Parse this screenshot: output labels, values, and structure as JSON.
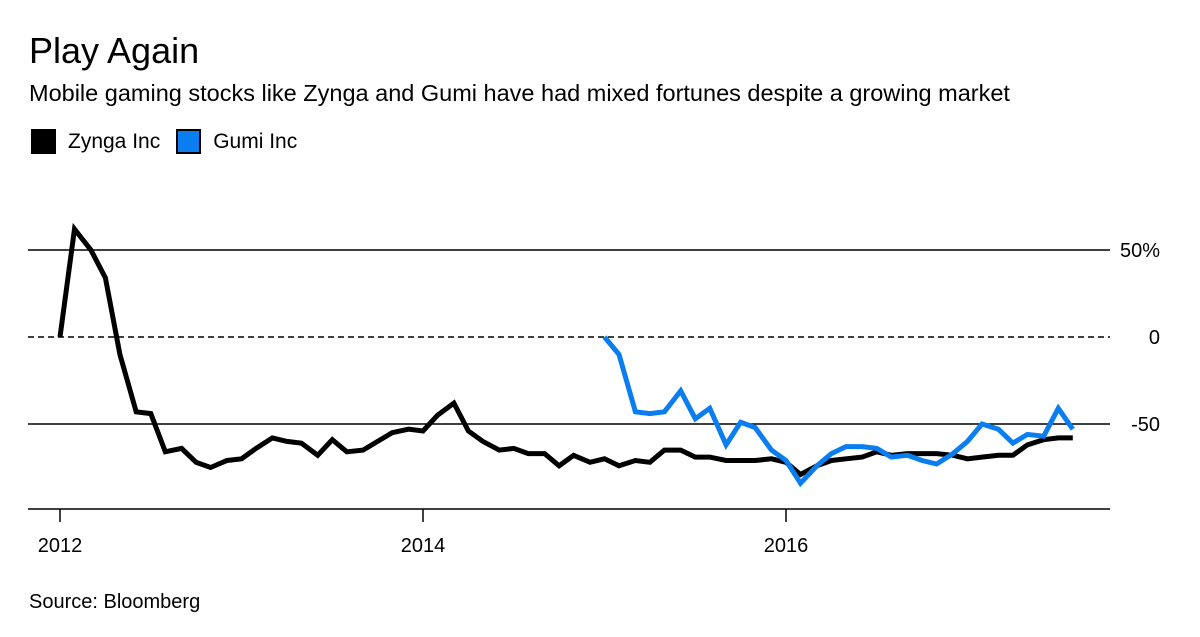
{
  "header": {
    "title": "Play Again",
    "subtitle": "Mobile gaming stocks like Zynga and Gumi have had mixed fortunes despite a growing market"
  },
  "legend": [
    {
      "label": "Zynga Inc",
      "color": "#000000"
    },
    {
      "label": "Gumi Inc",
      "color": "#0a7ef0"
    }
  ],
  "footer": {
    "source": "Source: Bloomberg"
  },
  "chart_data": {
    "type": "line",
    "title": "Play Again",
    "xlabel": "",
    "ylabel": "",
    "ylim": [
      -100,
      60
    ],
    "xlim": [
      2012,
      2017.7
    ],
    "y_ticks": [
      {
        "value": 50,
        "label": "50%",
        "style": "solid"
      },
      {
        "value": 0,
        "label": "0",
        "style": "dashed"
      },
      {
        "value": -50,
        "label": "-50",
        "style": "solid"
      }
    ],
    "x_ticks": [
      {
        "value": 2012,
        "label": "2012"
      },
      {
        "value": 2014,
        "label": "2014"
      },
      {
        "value": 2016,
        "label": "2016"
      }
    ],
    "series": [
      {
        "name": "Zynga Inc",
        "color": "#000000",
        "points": [
          [
            2012.0,
            0
          ],
          [
            2012.08,
            62
          ],
          [
            2012.17,
            50
          ],
          [
            2012.25,
            34
          ],
          [
            2012.33,
            -10
          ],
          [
            2012.42,
            -43
          ],
          [
            2012.5,
            -44
          ],
          [
            2012.58,
            -66
          ],
          [
            2012.67,
            -64
          ],
          [
            2012.75,
            -72
          ],
          [
            2012.83,
            -75
          ],
          [
            2012.92,
            -71
          ],
          [
            2013.0,
            -70
          ],
          [
            2013.08,
            -64
          ],
          [
            2013.17,
            -58
          ],
          [
            2013.25,
            -60
          ],
          [
            2013.33,
            -61
          ],
          [
            2013.42,
            -68
          ],
          [
            2013.5,
            -59
          ],
          [
            2013.58,
            -66
          ],
          [
            2013.67,
            -65
          ],
          [
            2013.75,
            -60
          ],
          [
            2013.83,
            -55
          ],
          [
            2013.92,
            -53
          ],
          [
            2014.0,
            -54
          ],
          [
            2014.08,
            -45
          ],
          [
            2014.17,
            -38
          ],
          [
            2014.25,
            -54
          ],
          [
            2014.33,
            -60
          ],
          [
            2014.42,
            -65
          ],
          [
            2014.5,
            -64
          ],
          [
            2014.58,
            -67
          ],
          [
            2014.67,
            -67
          ],
          [
            2014.75,
            -74
          ],
          [
            2014.83,
            -68
          ],
          [
            2014.92,
            -72
          ],
          [
            2015.0,
            -70
          ],
          [
            2015.08,
            -74
          ],
          [
            2015.17,
            -71
          ],
          [
            2015.25,
            -72
          ],
          [
            2015.33,
            -65
          ],
          [
            2015.42,
            -65
          ],
          [
            2015.5,
            -69
          ],
          [
            2015.58,
            -69
          ],
          [
            2015.67,
            -71
          ],
          [
            2015.75,
            -71
          ],
          [
            2015.83,
            -71
          ],
          [
            2015.92,
            -70
          ],
          [
            2016.0,
            -72
          ],
          [
            2016.08,
            -79
          ],
          [
            2016.17,
            -74
          ],
          [
            2016.25,
            -71
          ],
          [
            2016.33,
            -70
          ],
          [
            2016.42,
            -69
          ],
          [
            2016.5,
            -66
          ],
          [
            2016.58,
            -68
          ],
          [
            2016.67,
            -67
          ],
          [
            2016.75,
            -67
          ],
          [
            2016.83,
            -67
          ],
          [
            2016.92,
            -68
          ],
          [
            2017.0,
            -70
          ],
          [
            2017.08,
            -69
          ],
          [
            2017.17,
            -68
          ],
          [
            2017.25,
            -68
          ],
          [
            2017.33,
            -62
          ],
          [
            2017.42,
            -59
          ],
          [
            2017.5,
            -58
          ],
          [
            2017.58,
            -58
          ]
        ]
      },
      {
        "name": "Gumi Inc",
        "color": "#0a7ef0",
        "points": [
          [
            2015.0,
            0
          ],
          [
            2015.08,
            -10
          ],
          [
            2015.17,
            -43
          ],
          [
            2015.25,
            -44
          ],
          [
            2015.33,
            -43
          ],
          [
            2015.42,
            -31
          ],
          [
            2015.5,
            -47
          ],
          [
            2015.58,
            -41
          ],
          [
            2015.67,
            -62
          ],
          [
            2015.75,
            -49
          ],
          [
            2015.83,
            -52
          ],
          [
            2015.92,
            -65
          ],
          [
            2016.0,
            -71
          ],
          [
            2016.08,
            -84
          ],
          [
            2016.17,
            -74
          ],
          [
            2016.25,
            -67
          ],
          [
            2016.33,
            -63
          ],
          [
            2016.42,
            -63
          ],
          [
            2016.5,
            -64
          ],
          [
            2016.58,
            -69
          ],
          [
            2016.67,
            -68
          ],
          [
            2016.75,
            -71
          ],
          [
            2016.83,
            -73
          ],
          [
            2016.92,
            -67
          ],
          [
            2017.0,
            -60
          ],
          [
            2017.08,
            -50
          ],
          [
            2017.17,
            -53
          ],
          [
            2017.25,
            -61
          ],
          [
            2017.33,
            -56
          ],
          [
            2017.42,
            -57
          ],
          [
            2017.5,
            -41
          ],
          [
            2017.58,
            -53
          ]
        ]
      }
    ]
  }
}
